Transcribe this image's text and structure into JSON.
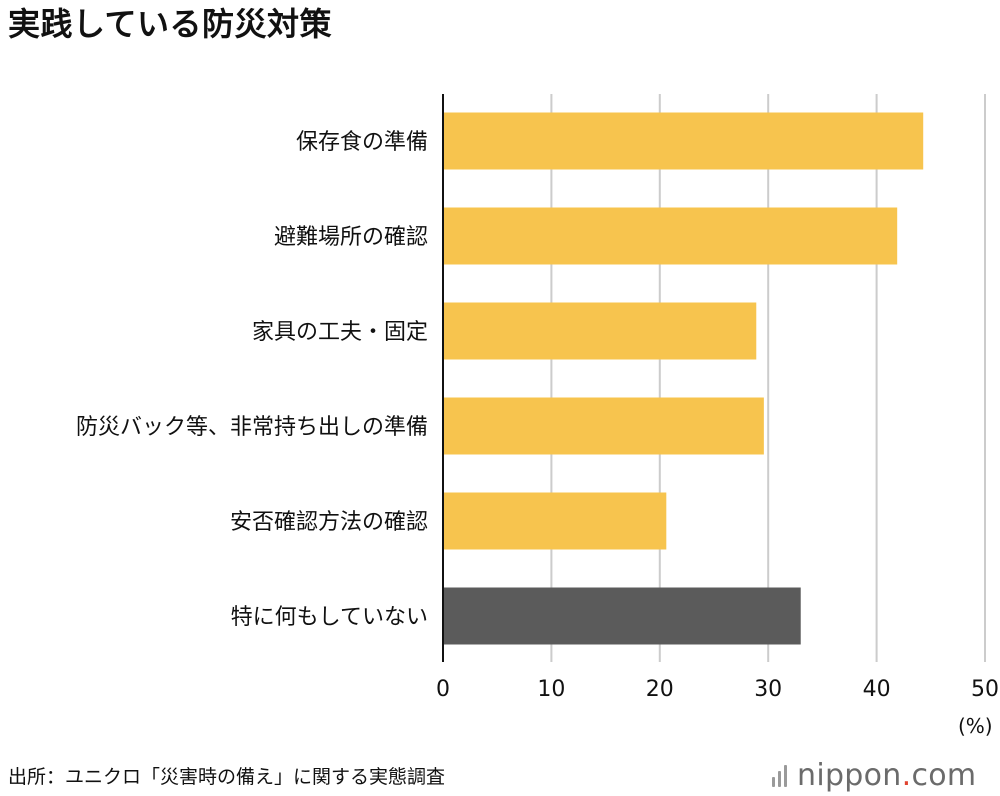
{
  "title": "実践している防災対策",
  "unit_label": "(%)",
  "source": "出所：ユニクロ「災害時の備え」に関する実態調査",
  "brand": {
    "name": "nippon",
    "dot": ".",
    "tld": "com"
  },
  "colors": {
    "bar": "#f7c44e",
    "bar_highlight": "#5b5b5b",
    "grid": "#cccccc",
    "axis": "#111111"
  },
  "chart_data": {
    "type": "bar",
    "orientation": "horizontal",
    "title": "実践している防災対策",
    "xlabel": "(%)",
    "ylabel": "",
    "xlim": [
      0,
      50
    ],
    "ticks": [
      0,
      10,
      20,
      30,
      40,
      50
    ],
    "grid": true,
    "categories": [
      "保存食の準備",
      "避難場所の確認",
      "家具の工夫・固定",
      "防災バック等、非常持ち出しの準備",
      "安否確認方法の確認",
      "特に何もしていない"
    ],
    "values": [
      44.3,
      41.9,
      28.9,
      29.6,
      20.6,
      33.0
    ],
    "highlight": [
      false,
      false,
      false,
      false,
      false,
      true
    ]
  }
}
